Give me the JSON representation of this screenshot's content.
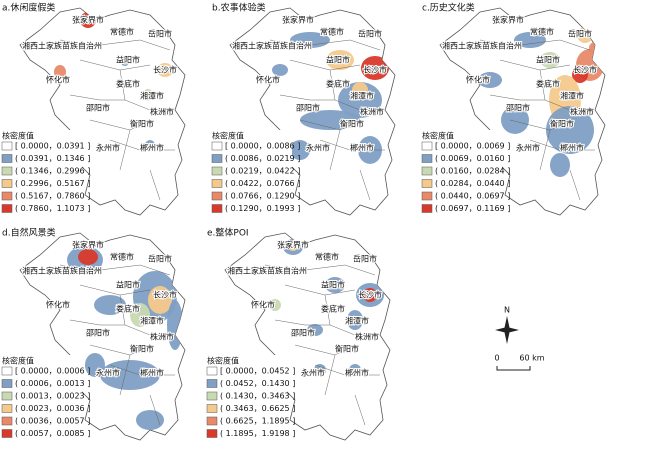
{
  "panels": [
    {
      "title": "a.休闲度假类",
      "legend_title": "核密度值",
      "legend": [
        "[ 0.0000，0.0391 ]",
        "( 0.0391，0.1346 ]",
        "( 0.1346，0.2996 ]",
        "( 0.2996，0.5167 ]",
        "( 0.5167，0.7860 ]",
        "( 0.7860，1.1073 ]"
      ]
    },
    {
      "title": "b.农事体验类",
      "legend_title": "核密度值",
      "legend": [
        "[ 0.0000，0.0086 ]",
        "( 0.0086，0.0219 ]",
        "( 0.0219，0.0422 ]",
        "( 0.0422，0.0766 ]",
        "( 0.0766，0.1290 ]",
        "( 0.1290，0.1993 ]"
      ]
    },
    {
      "title": "c.历史文化类",
      "legend_title": "核密度值",
      "legend": [
        "[ 0.0000，0.0069 ]",
        "( 0.0069，0.0160 ]",
        "( 0.0160，0.0284 ]",
        "( 0.0284，0.0440 ]",
        "( 0.0440，0.0697 ]",
        "( 0.0697，0.1169 ]"
      ]
    },
    {
      "title": "d.自然风景类",
      "legend_title": "核密度值",
      "legend": [
        "[ 0.0000，0.0006 ]",
        "( 0.0006，0.0013 ]",
        "( 0.0013，0.0023 ]",
        "( 0.0023，0.0036 ]",
        "( 0.0036，0.0057 ]",
        "( 0.0057，0.0085 ]"
      ]
    },
    {
      "title": "e.整体POI",
      "legend_title": "核密度值",
      "legend": [
        "[ 0.0000，0.0452 ]",
        "( 0.0452，0.1430 ]",
        "( 0.1430，0.3463 ]",
        "( 0.3463，0.6625 ]",
        "( 0.6625，1.1895 ]",
        "( 1.1895，1.9198 ]"
      ]
    }
  ],
  "legend_colors": [
    "#ffffff",
    "#7f9fc4",
    "#c9d9b2",
    "#f4c98c",
    "#e88a6a",
    "#d8392b"
  ],
  "cities": [
    "张家界市",
    "常德市",
    "岳阳市",
    "湘西土家族苗族自治州",
    "益阳市",
    "长沙市",
    "怀化市",
    "娄底市",
    "湘潭市",
    "株洲市",
    "邵阳市",
    "衡阳市",
    "永州市",
    "郴州市"
  ],
  "compass": "N",
  "scale": [
    "0",
    "60 km"
  ]
}
